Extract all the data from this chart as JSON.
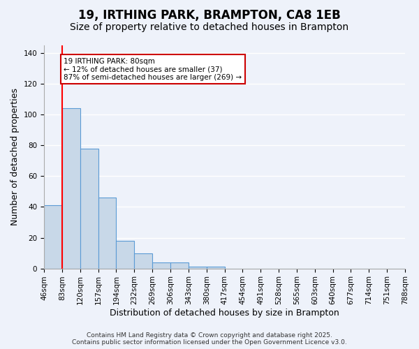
{
  "title": "19, IRTHING PARK, BRAMPTON, CA8 1EB",
  "subtitle": "Size of property relative to detached houses in Brampton",
  "xlabel": "Distribution of detached houses by size in Brampton",
  "ylabel": "Number of detached properties",
  "bin_labels": [
    "46sqm",
    "83sqm",
    "120sqm",
    "157sqm",
    "194sqm",
    "232sqm",
    "269sqm",
    "306sqm",
    "343sqm",
    "380sqm",
    "417sqm",
    "454sqm",
    "491sqm",
    "528sqm",
    "565sqm",
    "603sqm",
    "640sqm",
    "677sqm",
    "714sqm",
    "751sqm",
    "788sqm"
  ],
  "bar_values": [
    41,
    104,
    78,
    46,
    18,
    10,
    4,
    4,
    1,
    1,
    0,
    0,
    0,
    0,
    0,
    0,
    0,
    0,
    0,
    0
  ],
  "bar_color": "#c8d8e8",
  "bar_edge_color": "#5b9bd5",
  "red_line_x": 1.0,
  "ylim": [
    0,
    145
  ],
  "yticks": [
    0,
    20,
    40,
    60,
    80,
    100,
    120,
    140
  ],
  "annotation_line1": "19 IRTHING PARK: 80sqm",
  "annotation_line2": "← 12% of detached houses are smaller (37)",
  "annotation_line3": "87% of semi-detached houses are larger (269) →",
  "annotation_box_color": "#ffffff",
  "annotation_box_edge": "#cc0000",
  "footer_line1": "Contains HM Land Registry data © Crown copyright and database right 2025.",
  "footer_line2": "Contains public sector information licensed under the Open Government Licence v3.0.",
  "bg_color": "#eef2fa",
  "grid_color": "#ffffff",
  "title_fontsize": 12,
  "subtitle_fontsize": 10,
  "axis_label_fontsize": 9,
  "tick_fontsize": 7.5,
  "annotation_fontsize": 7.5,
  "footer_fontsize": 6.5
}
